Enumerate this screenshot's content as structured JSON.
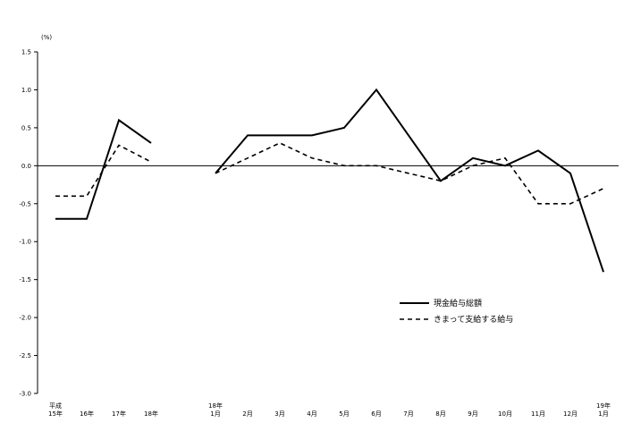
{
  "chart_data": {
    "type": "line",
    "unit_label": "(%)",
    "ylim": [
      -3.0,
      1.5
    ],
    "yticks": [
      "1.5",
      "1.0",
      "0.5",
      "0.0",
      "-0.5",
      "-1.0",
      "-1.5",
      "-2.0",
      "-2.5",
      "-3.0"
    ],
    "x_labels": [
      [
        "平成",
        "15年"
      ],
      [
        "16年"
      ],
      [
        "17年"
      ],
      [
        "18年"
      ],
      [
        "18年",
        "1月"
      ],
      [
        "2月"
      ],
      [
        "3月"
      ],
      [
        "4月"
      ],
      [
        "5月"
      ],
      [
        "6月"
      ],
      [
        "7月"
      ],
      [
        "8月"
      ],
      [
        "9月"
      ],
      [
        "10月"
      ],
      [
        "11月"
      ],
      [
        "12月"
      ],
      [
        "19年",
        "1月"
      ]
    ],
    "series": [
      {
        "name": "現金給与総額",
        "style": "solid",
        "color": "#000000",
        "values": [
          -0.7,
          -0.7,
          0.6,
          0.3,
          -0.1,
          0.4,
          0.4,
          0.4,
          0.5,
          1.0,
          0.4,
          -0.2,
          0.1,
          0.0,
          0.2,
          -0.1,
          -1.4
        ]
      },
      {
        "name": "きまって支給する給与",
        "style": "dashed",
        "color": "#000000",
        "values": [
          -0.4,
          -0.4,
          0.27,
          0.05,
          -0.1,
          0.1,
          0.3,
          0.1,
          0.0,
          0.0,
          -0.1,
          -0.2,
          0.0,
          0.1,
          -0.5,
          -0.5,
          -0.3
        ]
      }
    ],
    "legend_position": "lower-right",
    "grid": false
  }
}
